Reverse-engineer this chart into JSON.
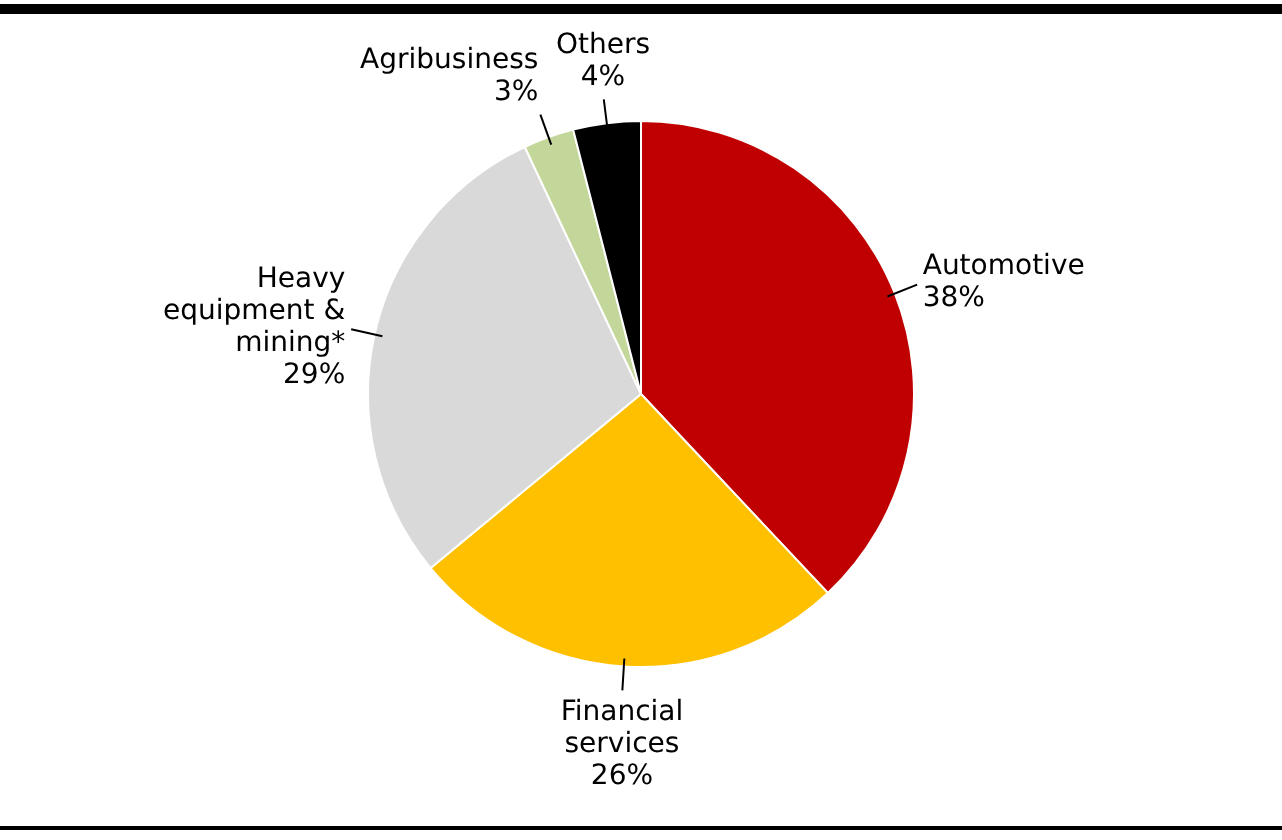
{
  "chart_data": {
    "type": "pie",
    "categories": [
      "Automotive",
      "Financial services",
      "Heavy equipment & mining*",
      "Agribusiness",
      "Others"
    ],
    "values": [
      38,
      26,
      29,
      3,
      4
    ],
    "colors": [
      "#c00000",
      "#ffc000",
      "#d9d9d9",
      "#c4d79b",
      "#000000"
    ],
    "value_labels": [
      "38%",
      "26%",
      "29%",
      "3%",
      "4%"
    ],
    "legend": false
  }
}
